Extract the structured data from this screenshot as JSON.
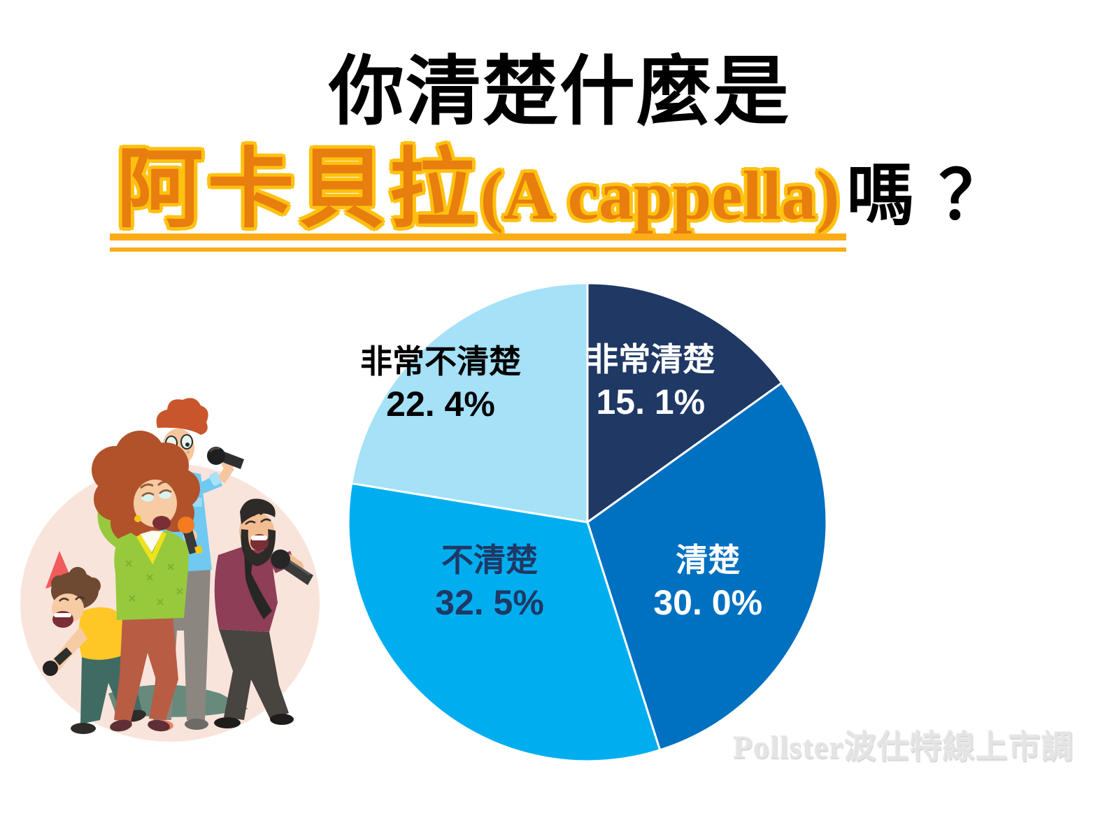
{
  "page": {
    "background": "#FFFFFF",
    "title": {
      "line1": "你清楚什麼是",
      "line2_highlight_cjk": "阿卡貝拉",
      "line2_highlight_latin": "(A cappella)",
      "line2_suffix": "嗎 ？"
    },
    "watermark": "Pollster波仕特線上市調"
  },
  "colors": {
    "title_text": "#000000",
    "highlight_fill": "#E87E0E",
    "highlight_outline": "#FFC110",
    "underline": "#FBAD18",
    "watermark_text": "#E4E4E4"
  },
  "illustration": {
    "description": "four cartoon singers holding microphones (a cappella group) on a peach circle",
    "backdrop_color": "#F9E4DB"
  },
  "chart_data": {
    "type": "pie",
    "question": "你清楚什麼是阿卡貝拉(A cappella)嗎？",
    "unit": "%",
    "start_angle_deg": 0,
    "direction": "clockwise",
    "legend_position": "none",
    "slice_border": {
      "color": "#FFFFFF",
      "width": 3
    },
    "slices": [
      {
        "label": "非常清楚",
        "value": 15.1,
        "display": "15. 1%",
        "color": "#1F3864",
        "text_color": "#FFFFFF",
        "label_pos": [
          0.629,
          0.19
        ]
      },
      {
        "label": "清楚",
        "value": 30.0,
        "display": "30. 0%",
        "color": "#0070C0",
        "text_color": "#FFFFFF",
        "label_pos": [
          0.746,
          0.6
        ]
      },
      {
        "label": "不清楚",
        "value": 32.5,
        "display": "32. 5%",
        "color": "#00AEEF",
        "text_color": "#1F3864",
        "label_pos": [
          0.3,
          0.6
        ]
      },
      {
        "label": "非常不清楚",
        "value": 22.4,
        "display": "22. 4%",
        "color": "#A5E1F7",
        "text_color": "#000000",
        "label_pos": [
          0.2,
          0.194
        ]
      }
    ]
  }
}
